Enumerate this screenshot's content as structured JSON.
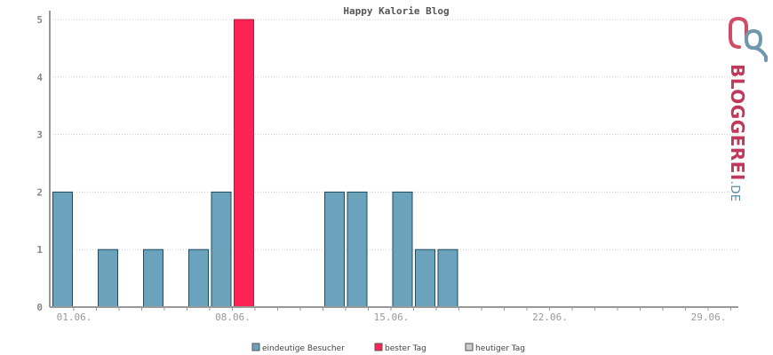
{
  "chart_data": {
    "type": "bar",
    "title": "Happy Kalorie Blog",
    "xlabel": "",
    "ylabel": "",
    "ylim": [
      0,
      5
    ],
    "yticks": [
      "0",
      "1",
      "2",
      "3",
      "4",
      "5"
    ],
    "x_ticks": [
      "01.06.",
      "08.06.",
      "15.06.",
      "22.06.",
      "29.06."
    ],
    "days": 30,
    "values": [
      2,
      0,
      1,
      0,
      1,
      0,
      1,
      2,
      5,
      0,
      0,
      0,
      2,
      2,
      0,
      2,
      1,
      1,
      0,
      0,
      0,
      0,
      0,
      0,
      0,
      0,
      0,
      0,
      0,
      0
    ],
    "best_day_index": 8,
    "grid": true,
    "legend_position": "bottom",
    "legend": [
      {
        "label": "eindeutige Besucher",
        "color": "#6aa3bb"
      },
      {
        "label": "bester Tag",
        "color": "#ff2255"
      },
      {
        "label": "heutiger Tag",
        "color": "#cccccc"
      }
    ]
  },
  "logo": {
    "main": "BLOGGEREI",
    "suffix": ".DE",
    "color_main": "#c0395a",
    "color_suffix": "#5b8aa6"
  }
}
